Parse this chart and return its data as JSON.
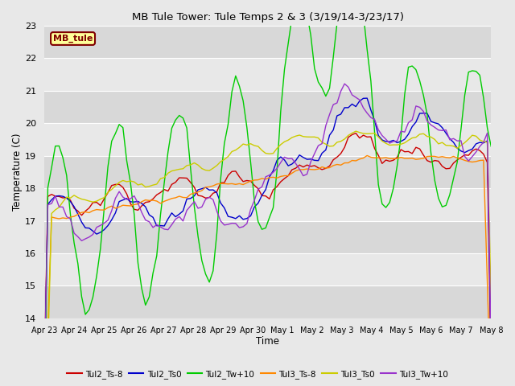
{
  "title": "MB Tule Tower: Tule Temps 2 & 3 (3/19/14-3/23/17)",
  "xlabel": "Time",
  "ylabel": "Temperature (C)",
  "ylim": [
    14.0,
    23.0
  ],
  "yticks": [
    14.0,
    15.0,
    16.0,
    17.0,
    18.0,
    19.0,
    20.0,
    21.0,
    22.0,
    23.0
  ],
  "xtick_labels": [
    "Apr 23",
    "Apr 24",
    "Apr 25",
    "Apr 26",
    "Apr 27",
    "Apr 28",
    "Apr 29",
    "Apr 30",
    "May 1",
    "May 2",
    "May 3",
    "May 4",
    "May 5",
    "May 6",
    "May 7",
    "May 8"
  ],
  "bg_color": "#e8e8e8",
  "grid_color": "white",
  "legend_label": "MB_tule",
  "legend_fg": "#800000",
  "legend_bg": "#ffff99",
  "legend_edge": "#800000",
  "series": {
    "Tul2_Ts-8": {
      "color": "#cc0000",
      "lw": 1.0
    },
    "Tul2_Ts0": {
      "color": "#0000cc",
      "lw": 1.0
    },
    "Tul2_Tw+10": {
      "color": "#00cc00",
      "lw": 1.0
    },
    "Tul3_Ts-8": {
      "color": "#ff8800",
      "lw": 1.0
    },
    "Tul3_Ts0": {
      "color": "#cccc00",
      "lw": 1.0
    },
    "Tul3_Tw+10": {
      "color": "#9933cc",
      "lw": 1.0
    }
  }
}
